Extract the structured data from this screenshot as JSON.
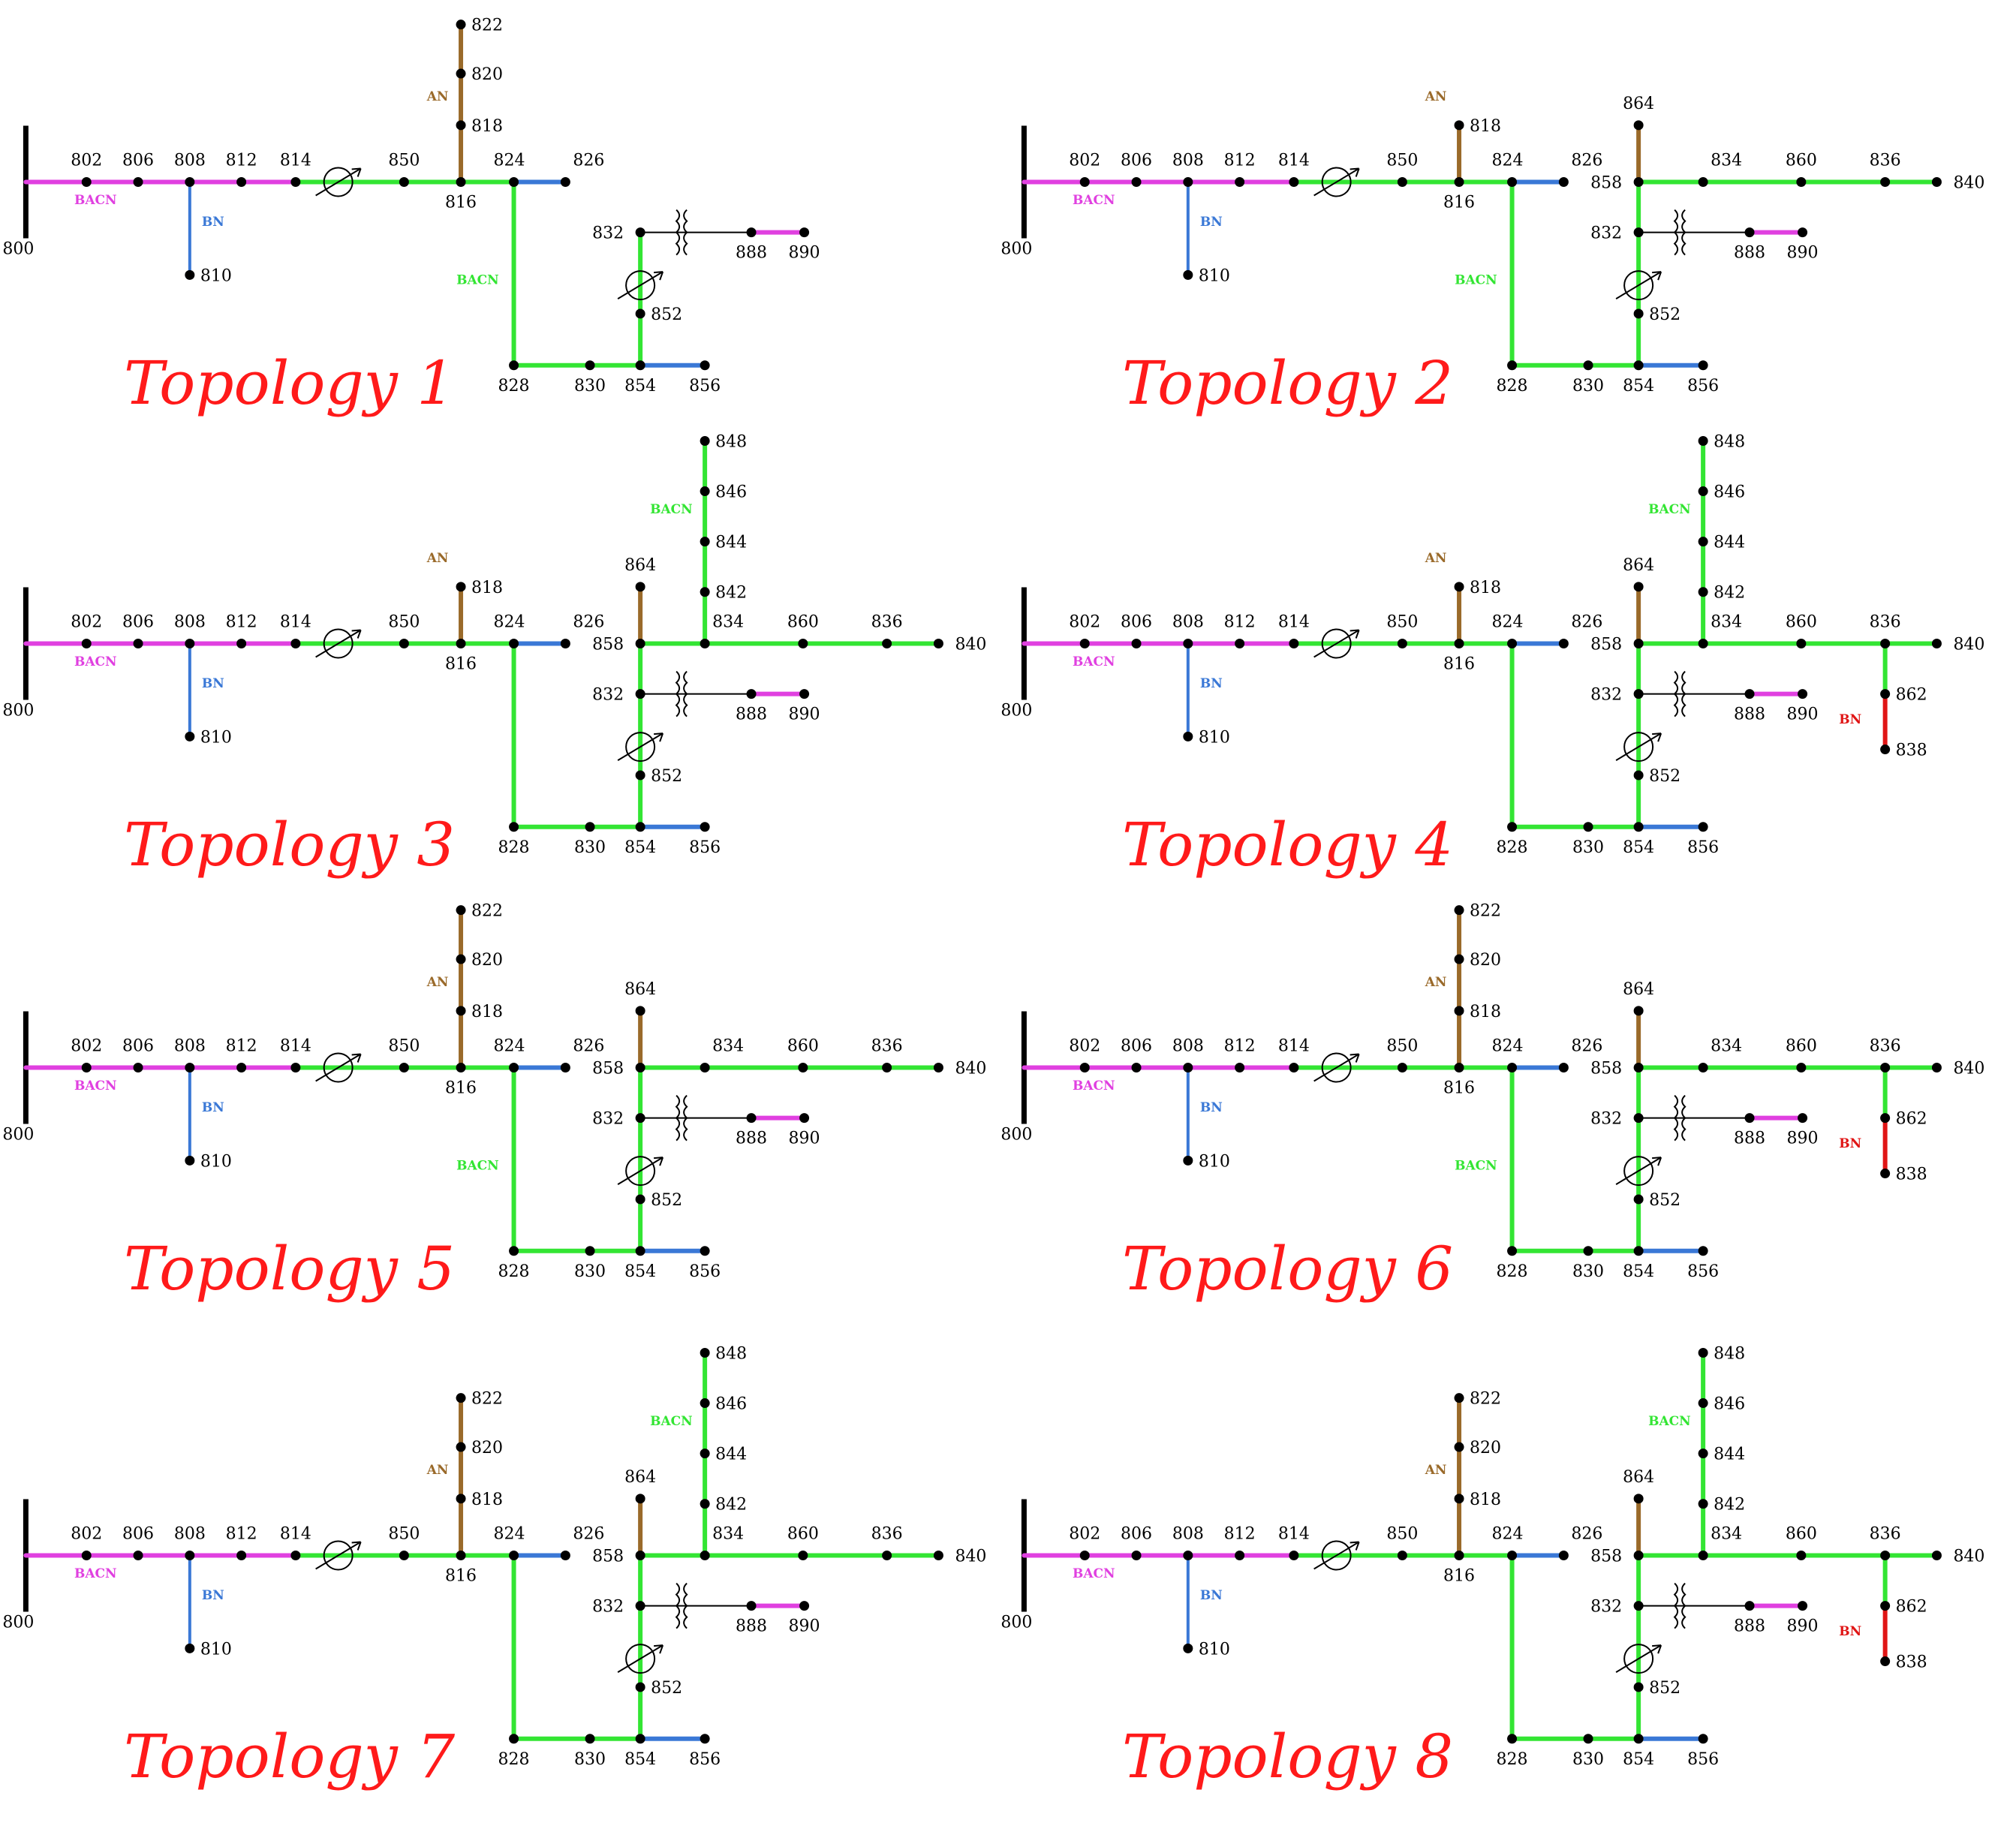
{
  "colors": {
    "BACN_lateral": "#e040e0",
    "BACN_main": "#33e533",
    "AN": "#9a6a2a",
    "BN_blue": "#3a78d6",
    "BN_red": "#e01515",
    "plain": "#000000",
    "title": "#ff1a1a"
  },
  "phase_labels": {
    "BACN": "BACN",
    "AN": "AN",
    "BN": "BN"
  },
  "panels": [
    {
      "title": "Topology 1",
      "features": {
        "sub822": true,
        "sub858": false,
        "branch840": false,
        "branch848": false,
        "branch864": false,
        "branch862": false
      }
    },
    {
      "title": "Topology 2",
      "features": {
        "sub822": false,
        "sub858": true,
        "branch840": true,
        "branch848": false,
        "branch864": true,
        "branch862": false
      }
    },
    {
      "title": "Topology 3",
      "features": {
        "sub822": false,
        "sub858": true,
        "branch840": true,
        "branch848": true,
        "branch864": true,
        "branch862": false
      }
    },
    {
      "title": "Topology 4",
      "features": {
        "sub822": false,
        "sub858": true,
        "branch840": true,
        "branch848": true,
        "branch864": true,
        "branch862": true
      }
    },
    {
      "title": "Topology 5",
      "features": {
        "sub822": true,
        "sub858": true,
        "branch840": true,
        "branch848": false,
        "branch864": true,
        "branch862": false
      }
    },
    {
      "title": "Topology 6",
      "features": {
        "sub822": true,
        "sub858": true,
        "branch840": true,
        "branch848": false,
        "branch864": true,
        "branch862": true
      }
    },
    {
      "title": "Topology 7",
      "features": {
        "sub822": true,
        "sub858": true,
        "branch840": true,
        "branch848": true,
        "branch864": true,
        "branch862": false
      }
    },
    {
      "title": "Topology 8",
      "features": {
        "sub822": true,
        "sub858": true,
        "branch840": true,
        "branch848": true,
        "branch864": true,
        "branch862": true
      }
    }
  ],
  "node_names": {
    "n800": "800",
    "n802": "802",
    "n806": "806",
    "n808": "808",
    "n810": "810",
    "n812": "812",
    "n814": "814",
    "n850": "850",
    "n816": "816",
    "n818": "818",
    "n820": "820",
    "n822": "822",
    "n824": "824",
    "n826": "826",
    "n828": "828",
    "n830": "830",
    "n854": "854",
    "n856": "856",
    "n852": "852",
    "n832": "832",
    "n888": "888",
    "n890": "890",
    "n858": "858",
    "n864": "864",
    "n834": "834",
    "n860": "860",
    "n836": "836",
    "n840": "840",
    "n842": "842",
    "n844": "844",
    "n846": "846",
    "n848": "848",
    "n862": "862",
    "n838": "838"
  }
}
